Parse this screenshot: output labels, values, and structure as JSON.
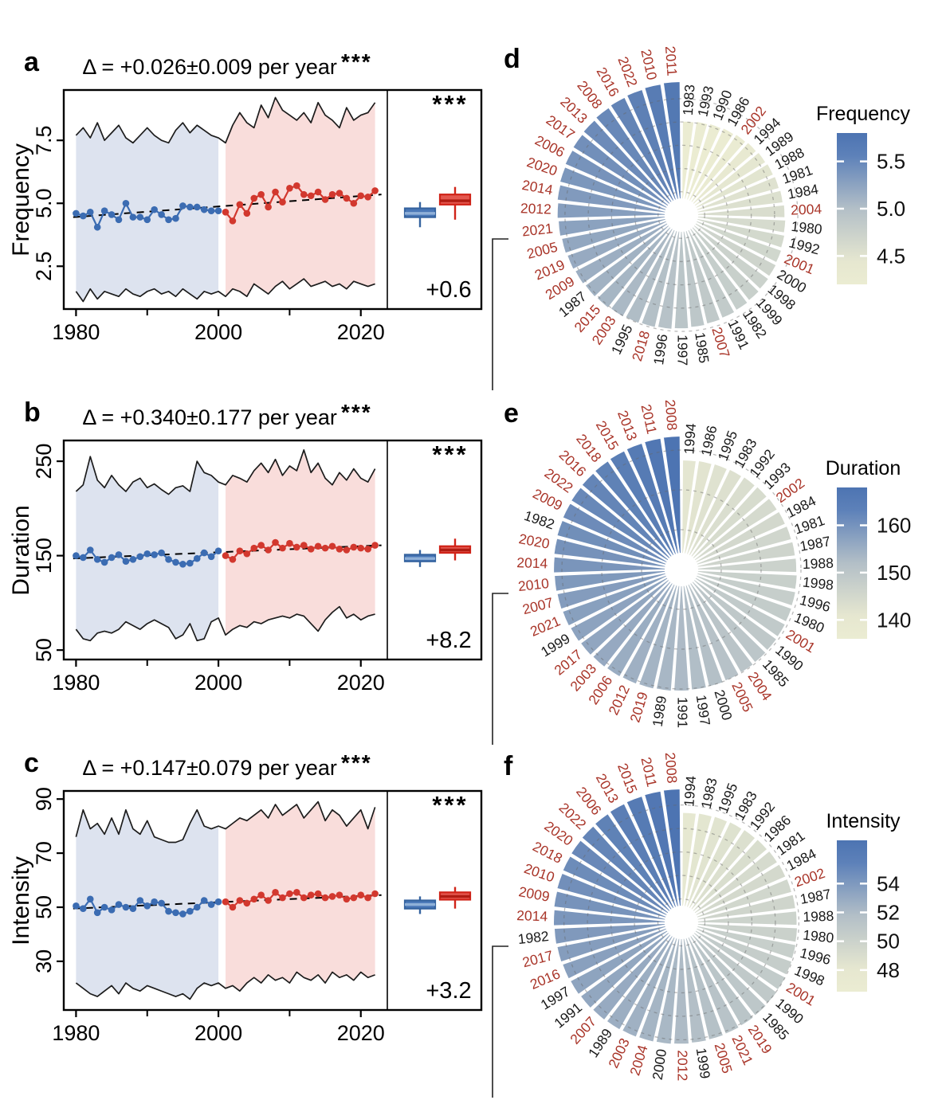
{
  "colors": {
    "series_blue": "#3b6cb2",
    "series_red": "#d2382e",
    "band_blue": "#dde3ef",
    "band_pink": "#f9dddb",
    "box_blue_fill": "#4a78b8",
    "box_blue_stroke": "#35639f",
    "box_blue_median": "#8fb0d8",
    "box_red_fill": "#e4574e",
    "box_red_stroke": "#d02318",
    "box_red_median": "#b01c12",
    "envelope": "#1c1c1c",
    "trend": "#000000",
    "polar_low": "#ebecd2",
    "polar_mid": "#b3bfc7",
    "polar_high": "#4d74b2",
    "year_red": "#a93529",
    "year_black": "#1a1a1a"
  },
  "chart_data": [
    {
      "id": "a",
      "type": "line",
      "letter": "a",
      "title": "Δ = +0.026±0.009 per year",
      "sig": "***",
      "ylabel": "Frequency",
      "ylim": [
        0.8,
        9.5
      ],
      "yticks": [
        2.5,
        5.0,
        7.5
      ],
      "ytick_labels": [
        "2.5",
        "5.0",
        "7.5"
      ],
      "xlim": [
        1978.5,
        2023.5
      ],
      "xticks": [
        1980,
        2000,
        2020
      ],
      "xtick_labels": [
        "1980",
        "2000",
        "2020"
      ],
      "xminor": [
        1990,
        2010
      ],
      "years_start": 1980,
      "split_index": 21,
      "mean": [
        4.6,
        4.5,
        4.65,
        4.05,
        4.7,
        4.55,
        4.35,
        5.0,
        4.45,
        4.45,
        4.35,
        4.75,
        4.55,
        4.35,
        4.4,
        4.9,
        4.85,
        4.85,
        4.75,
        4.7,
        4.7,
        4.65,
        4.3,
        4.95,
        4.6,
        5.2,
        5.35,
        4.85,
        5.45,
        5.05,
        5.6,
        5.7,
        5.35,
        5.3,
        5.45,
        5.15,
        5.35,
        5.4,
        5.2,
        5.0,
        5.3,
        5.25,
        5.5
      ],
      "upper": [
        7.7,
        8.0,
        7.6,
        8.2,
        7.5,
        7.8,
        8.1,
        7.6,
        7.4,
        7.7,
        8.0,
        7.7,
        7.5,
        7.4,
        7.9,
        8.2,
        7.8,
        8.1,
        7.9,
        7.7,
        7.6,
        7.4,
        8.1,
        8.6,
        8.2,
        8.0,
        8.9,
        8.4,
        9.2,
        8.7,
        8.5,
        8.3,
        8.6,
        8.2,
        9.0,
        8.5,
        8.3,
        8.0,
        8.8,
        8.3,
        8.5,
        8.6,
        9.0
      ],
      "lower": [
        1.5,
        1.1,
        1.6,
        1.2,
        1.5,
        1.4,
        1.3,
        1.6,
        1.4,
        1.3,
        1.5,
        1.6,
        1.4,
        1.5,
        1.3,
        1.6,
        1.4,
        1.2,
        1.5,
        1.4,
        1.5,
        1.3,
        1.6,
        1.5,
        1.3,
        1.8,
        1.6,
        1.4,
        1.7,
        1.9,
        1.6,
        1.8,
        2.0,
        1.7,
        1.8,
        1.9,
        1.7,
        1.8,
        1.6,
        1.9,
        1.8,
        1.7,
        1.8
      ],
      "trend": [
        4.45,
        5.35
      ],
      "box_blue": {
        "lo": 4.05,
        "q1": 4.45,
        "med": 4.6,
        "q3": 4.8,
        "hi": 5.05
      },
      "box_red": {
        "lo": 4.35,
        "q1": 4.95,
        "med": 5.1,
        "q3": 5.35,
        "hi": 5.65
      },
      "box_sig": "***",
      "box_delta": "+0.6"
    },
    {
      "id": "b",
      "type": "line",
      "letter": "b",
      "title": "Δ = +0.340±0.177 per year",
      "sig": "***",
      "ylabel": "Duration",
      "ylim": [
        40,
        272
      ],
      "yticks": [
        50,
        150,
        250
      ],
      "ytick_labels": [
        "50",
        "150",
        "250"
      ],
      "xlim": [
        1978.5,
        2023.5
      ],
      "xticks": [
        1980,
        2000,
        2020
      ],
      "xtick_labels": [
        "1980",
        "2000",
        "2020"
      ],
      "xminor": [
        1990,
        2010
      ],
      "years_start": 1980,
      "split_index": 21,
      "mean": [
        150,
        148,
        156,
        146,
        143,
        148,
        151,
        144,
        146,
        149,
        152,
        151,
        153,
        146,
        143,
        141,
        142,
        147,
        153,
        149,
        155,
        150,
        146,
        155,
        152,
        158,
        161,
        156,
        164,
        158,
        163,
        159,
        161,
        157,
        160,
        158,
        160,
        157,
        156,
        159,
        158,
        157,
        161
      ],
      "upper": [
        218,
        225,
        255,
        230,
        222,
        235,
        225,
        218,
        228,
        232,
        222,
        226,
        220,
        215,
        222,
        224,
        218,
        250,
        238,
        235,
        228,
        225,
        235,
        232,
        228,
        240,
        248,
        238,
        252,
        235,
        245,
        240,
        262,
        238,
        248,
        232,
        225,
        238,
        230,
        242,
        232,
        228,
        242
      ],
      "lower": [
        72,
        62,
        60,
        68,
        70,
        68,
        72,
        80,
        76,
        72,
        78,
        82,
        78,
        74,
        62,
        66,
        78,
        60,
        62,
        80,
        84,
        66,
        72,
        76,
        74,
        80,
        78,
        82,
        84,
        86,
        84,
        88,
        86,
        78,
        70,
        82,
        90,
        96,
        84,
        88,
        82,
        86,
        88
      ],
      "trend": [
        147,
        161
      ],
      "box_blue": {
        "lo": 138,
        "q1": 144,
        "med": 147,
        "q3": 151,
        "hi": 156
      },
      "box_red": {
        "lo": 145,
        "q1": 153,
        "med": 156,
        "q3": 160,
        "hi": 168
      },
      "box_sig": "***",
      "box_delta": "+8.2"
    },
    {
      "id": "c",
      "type": "line",
      "letter": "c",
      "title": "Δ = +0.147±0.079 per year",
      "sig": "***",
      "ylabel": "Intensity",
      "ylim": [
        12,
        93
      ],
      "yticks": [
        30,
        50,
        70,
        90
      ],
      "ytick_labels": [
        "30",
        "50",
        "70",
        "90"
      ],
      "xlim": [
        1978.5,
        2023.5
      ],
      "xticks": [
        1980,
        2000,
        2020
      ],
      "xtick_labels": [
        "1980",
        "2000",
        "2020"
      ],
      "xminor": [
        1990,
        2010
      ],
      "years_start": 1980,
      "split_index": 21,
      "mean": [
        50.5,
        49.5,
        53,
        48,
        50,
        49,
        51,
        50,
        49.5,
        52.5,
        50.5,
        52,
        51.5,
        48.5,
        48,
        47.5,
        48.5,
        50,
        52.5,
        51,
        52,
        52,
        50,
        52.5,
        51.5,
        53,
        54.5,
        52.5,
        55.5,
        53.5,
        55,
        55.5,
        53.5,
        54.5,
        55,
        53.5,
        54,
        54.5,
        53,
        53.5,
        54.5,
        53.5,
        55
      ],
      "upper": [
        76,
        86,
        79,
        81,
        77,
        83,
        77,
        86,
        79,
        77,
        82,
        76,
        75,
        74,
        74,
        75,
        81,
        86,
        80,
        79,
        80,
        79,
        81,
        83,
        82,
        84,
        86,
        83,
        88,
        84,
        86,
        88,
        83,
        86,
        89,
        82,
        86,
        84,
        80,
        83,
        86,
        79,
        87
      ],
      "lower": [
        22,
        20,
        18,
        17,
        19,
        21,
        18,
        22,
        20,
        19,
        21,
        20,
        19,
        18,
        17,
        18,
        16,
        20,
        22,
        21,
        22,
        20,
        21,
        19,
        22,
        24,
        22,
        25,
        23,
        24,
        22,
        26,
        24,
        23,
        25,
        22,
        26,
        24,
        25,
        23,
        26,
        24,
        25
      ],
      "trend": [
        49.5,
        54.5
      ],
      "box_blue": {
        "lo": 47.5,
        "q1": 49.5,
        "med": 51,
        "q3": 52.5,
        "hi": 54
      },
      "box_red": {
        "lo": 49.5,
        "q1": 52.8,
        "med": 54,
        "q3": 55.5,
        "hi": 57.5
      },
      "box_sig": "***",
      "box_delta": "+3.2"
    },
    {
      "id": "d",
      "type": "circular-bar",
      "letter": "d",
      "legend_title": "Frequency",
      "legend_ticks": [
        "5.5",
        "5.0",
        "4.5"
      ],
      "legend_tick_values": [
        5.5,
        5.0,
        4.5
      ],
      "color_domain": [
        4.2,
        5.8
      ],
      "vmax": 5.75,
      "grid_values": [
        1,
        2,
        3,
        4,
        5
      ],
      "years": [
        1983,
        1993,
        1990,
        1986,
        2002,
        1994,
        1989,
        1988,
        1981,
        1984,
        2004,
        1980,
        1992,
        2001,
        2000,
        1998,
        1999,
        1982,
        1991,
        2007,
        1985,
        1997,
        1996,
        2018,
        1995,
        2003,
        2015,
        1987,
        2009,
        2019,
        2005,
        2021,
        2012,
        2014,
        2020,
        2006,
        2017,
        2013,
        2008,
        2016,
        2022,
        2010,
        2011
      ],
      "values": [
        4.05,
        4.09,
        4.13,
        4.17,
        4.21,
        4.25,
        4.29,
        4.33,
        4.37,
        4.41,
        4.46,
        4.5,
        4.54,
        4.58,
        4.62,
        4.66,
        4.7,
        4.74,
        4.78,
        4.82,
        4.86,
        4.9,
        4.94,
        4.98,
        5.02,
        5.06,
        5.1,
        5.14,
        5.18,
        5.22,
        5.26,
        5.31,
        5.35,
        5.39,
        5.43,
        5.47,
        5.51,
        5.55,
        5.59,
        5.63,
        5.67,
        5.71,
        5.75
      ]
    },
    {
      "id": "e",
      "type": "circular-bar",
      "letter": "e",
      "legend_title": "Duration",
      "legend_ticks": [
        "160",
        "150",
        "140"
      ],
      "legend_tick_values": [
        160,
        150,
        140
      ],
      "color_domain": [
        136,
        168
      ],
      "vmax": 168,
      "grid_values": [
        50,
        100,
        150
      ],
      "years": [
        1994,
        1986,
        1995,
        1983,
        1992,
        1993,
        2002,
        1984,
        1981,
        1987,
        1988,
        1998,
        1996,
        1980,
        2001,
        1990,
        1985,
        2004,
        2005,
        2000,
        1997,
        1991,
        1989,
        2019,
        2012,
        2006,
        2003,
        2017,
        1999,
        2021,
        2007,
        2010,
        2014,
        2020,
        1982,
        2009,
        2022,
        2016,
        2018,
        2015,
        2013,
        2011,
        2008
      ],
      "values": [
        138,
        138.7,
        139.4,
        140.1,
        140.9,
        141.6,
        142.3,
        143,
        143.7,
        144.4,
        145.1,
        145.9,
        146.6,
        147.3,
        148,
        148.7,
        149.4,
        150.1,
        150.9,
        151.6,
        152.3,
        153,
        153.7,
        154.4,
        155.1,
        155.9,
        156.6,
        157.3,
        158,
        158.7,
        159.4,
        160.1,
        160.9,
        161.6,
        162.3,
        163,
        163.7,
        164.4,
        165.1,
        165.9,
        166.6,
        167.3,
        168
      ]
    },
    {
      "id": "f",
      "type": "circular-bar",
      "letter": "f",
      "legend_title": "Intensity",
      "legend_ticks": [
        "54",
        "52",
        "50",
        "48"
      ],
      "legend_tick_values": [
        54,
        52,
        50,
        48
      ],
      "color_domain": [
        46.5,
        57
      ],
      "vmax": 57,
      "grid_values": [
        10,
        20,
        30,
        40,
        50
      ],
      "years": [
        1994,
        1983,
        1995,
        1983,
        1992,
        1986,
        1981,
        1984,
        2002,
        1987,
        1988,
        1980,
        1996,
        1998,
        2001,
        1990,
        1985,
        2019,
        2021,
        2005,
        1999,
        2012,
        2000,
        2004,
        2003,
        1989,
        2007,
        1991,
        1997,
        2016,
        2017,
        1982,
        2014,
        2009,
        2010,
        2018,
        2020,
        2022,
        2006,
        2013,
        2015,
        2011,
        2008
      ],
      "values": [
        47,
        47.24,
        47.48,
        47.71,
        47.95,
        48.19,
        48.43,
        48.67,
        48.9,
        49.14,
        49.38,
        49.62,
        49.86,
        50.1,
        50.33,
        50.57,
        50.81,
        51.05,
        51.29,
        51.52,
        51.76,
        52,
        52.24,
        52.48,
        52.71,
        52.95,
        53.19,
        53.43,
        53.67,
        53.9,
        54.14,
        54.38,
        54.62,
        54.86,
        55.1,
        55.33,
        55.57,
        55.81,
        56.05,
        56.29,
        56.52,
        56.76,
        57
      ]
    }
  ]
}
